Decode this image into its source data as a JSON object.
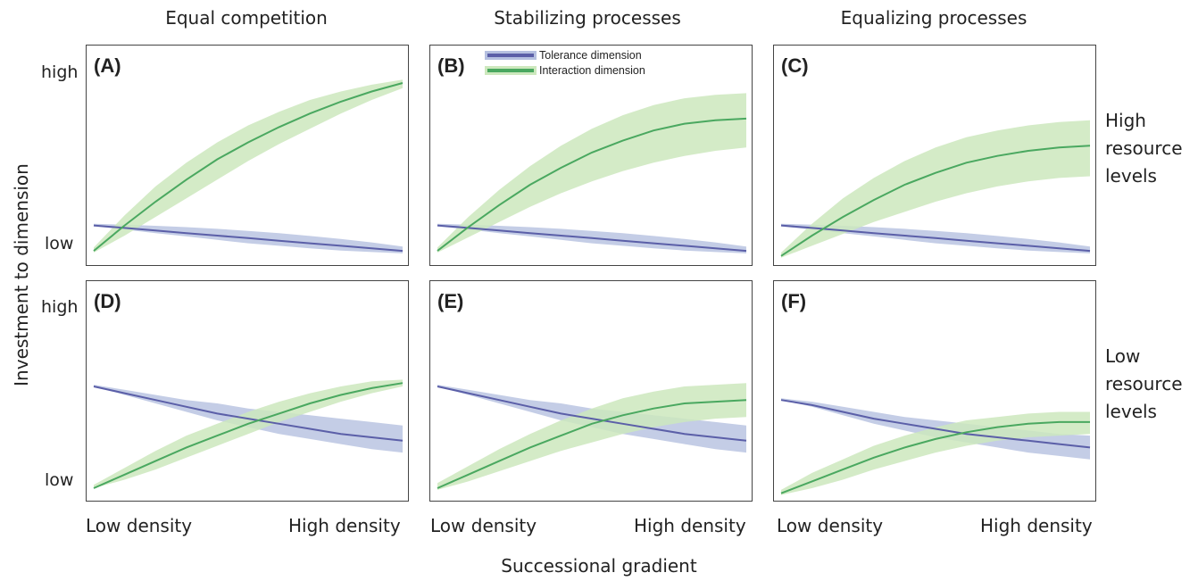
{
  "figure": {
    "column_titles": [
      "Equal competition",
      "Stabilizing processes",
      "Equalizing processes"
    ],
    "row_labels": [
      "High\nresource\nlevels",
      "Low\nresource\nlevels"
    ],
    "y_ticks": {
      "high": "high",
      "low": "low"
    },
    "x_ticks": {
      "low": "Low density",
      "high": "High density"
    },
    "xlabel": "Successional gradient",
    "ylabel": "Investment to dimension",
    "legend": {
      "tolerance": "Tolerance dimension",
      "interaction": "Interaction dimension"
    },
    "colors": {
      "tolerance_line": "#5b5fa8",
      "tolerance_band": "#b5c0e0",
      "interaction_line": "#4aa860",
      "interaction_band": "#cde8bd"
    }
  },
  "chart_data": [
    {
      "type": "line",
      "panel": "(A)",
      "title": "",
      "x": [
        0,
        0.1,
        0.2,
        0.3,
        0.4,
        0.5,
        0.6,
        0.7,
        0.8,
        0.9,
        1.0
      ],
      "ylim": [
        0,
        1
      ],
      "series": [
        {
          "name": "Tolerance dimension",
          "values": [
            0.16,
            0.145,
            0.13,
            0.115,
            0.1,
            0.085,
            0.07,
            0.055,
            0.04,
            0.025,
            0.01
          ],
          "lower": [
            0.155,
            0.135,
            0.115,
            0.095,
            0.075,
            0.055,
            0.04,
            0.025,
            0.012,
            0.003,
            -0.005
          ],
          "upper": [
            0.17,
            0.165,
            0.158,
            0.15,
            0.14,
            0.128,
            0.114,
            0.098,
            0.08,
            0.06,
            0.035
          ]
        },
        {
          "name": "Interaction dimension",
          "values": [
            0.01,
            0.16,
            0.3,
            0.43,
            0.55,
            0.65,
            0.74,
            0.82,
            0.89,
            0.95,
            1.0
          ],
          "lower": [
            0.0,
            0.1,
            0.21,
            0.32,
            0.43,
            0.54,
            0.64,
            0.73,
            0.82,
            0.9,
            0.97
          ],
          "upper": [
            0.03,
            0.22,
            0.39,
            0.53,
            0.65,
            0.75,
            0.83,
            0.9,
            0.95,
            0.99,
            1.02
          ]
        }
      ]
    },
    {
      "type": "line",
      "panel": "(B)",
      "title": "",
      "x": [
        0,
        0.1,
        0.2,
        0.3,
        0.4,
        0.5,
        0.6,
        0.7,
        0.8,
        0.9,
        1.0
      ],
      "ylim": [
        0,
        1
      ],
      "series": [
        {
          "name": "Tolerance dimension",
          "values": [
            0.16,
            0.145,
            0.13,
            0.115,
            0.1,
            0.085,
            0.07,
            0.055,
            0.04,
            0.025,
            0.01
          ],
          "lower": [
            0.155,
            0.135,
            0.115,
            0.095,
            0.075,
            0.055,
            0.04,
            0.025,
            0.012,
            0.003,
            -0.005
          ],
          "upper": [
            0.17,
            0.165,
            0.158,
            0.15,
            0.14,
            0.128,
            0.114,
            0.098,
            0.08,
            0.06,
            0.035
          ]
        },
        {
          "name": "Interaction dimension",
          "values": [
            0.01,
            0.15,
            0.28,
            0.4,
            0.5,
            0.59,
            0.66,
            0.72,
            0.76,
            0.78,
            0.79
          ],
          "lower": [
            0.0,
            0.09,
            0.18,
            0.27,
            0.35,
            0.42,
            0.48,
            0.53,
            0.57,
            0.6,
            0.62
          ],
          "upper": [
            0.03,
            0.21,
            0.37,
            0.51,
            0.63,
            0.73,
            0.81,
            0.87,
            0.91,
            0.93,
            0.94
          ]
        }
      ]
    },
    {
      "type": "line",
      "panel": "(C)",
      "title": "",
      "x": [
        0,
        0.1,
        0.2,
        0.3,
        0.4,
        0.5,
        0.6,
        0.7,
        0.8,
        0.9,
        1.0
      ],
      "ylim": [
        0,
        1
      ],
      "series": [
        {
          "name": "Tolerance dimension",
          "values": [
            0.16,
            0.145,
            0.13,
            0.115,
            0.1,
            0.085,
            0.07,
            0.055,
            0.04,
            0.025,
            0.01
          ],
          "lower": [
            0.155,
            0.135,
            0.115,
            0.095,
            0.075,
            0.055,
            0.04,
            0.025,
            0.012,
            0.003,
            -0.005
          ],
          "upper": [
            0.17,
            0.165,
            0.158,
            0.15,
            0.14,
            0.128,
            0.114,
            0.098,
            0.08,
            0.06,
            0.035
          ]
        },
        {
          "name": "Interaction dimension",
          "values": [
            -0.02,
            0.1,
            0.21,
            0.31,
            0.4,
            0.47,
            0.53,
            0.57,
            0.6,
            0.62,
            0.63
          ],
          "lower": [
            -0.03,
            0.04,
            0.11,
            0.18,
            0.24,
            0.3,
            0.35,
            0.39,
            0.42,
            0.44,
            0.45
          ],
          "upper": [
            0.0,
            0.17,
            0.32,
            0.44,
            0.54,
            0.62,
            0.68,
            0.72,
            0.75,
            0.77,
            0.78
          ]
        }
      ]
    },
    {
      "type": "line",
      "panel": "(D)",
      "title": "",
      "x": [
        0,
        0.1,
        0.2,
        0.3,
        0.4,
        0.5,
        0.6,
        0.7,
        0.8,
        0.9,
        1.0
      ],
      "ylim": [
        0,
        1
      ],
      "series": [
        {
          "name": "Tolerance dimension",
          "values": [
            0.6,
            0.56,
            0.52,
            0.48,
            0.44,
            0.41,
            0.38,
            0.35,
            0.32,
            0.3,
            0.28
          ],
          "lower": [
            0.6,
            0.55,
            0.5,
            0.45,
            0.4,
            0.36,
            0.32,
            0.29,
            0.26,
            0.23,
            0.21
          ],
          "upper": [
            0.61,
            0.58,
            0.55,
            0.52,
            0.5,
            0.47,
            0.45,
            0.43,
            0.41,
            0.39,
            0.37
          ]
        },
        {
          "name": "Interaction dimension",
          "values": [
            0.0,
            0.08,
            0.16,
            0.24,
            0.31,
            0.38,
            0.44,
            0.5,
            0.55,
            0.59,
            0.62
          ],
          "lower": [
            0.0,
            0.05,
            0.11,
            0.18,
            0.25,
            0.32,
            0.39,
            0.45,
            0.51,
            0.56,
            0.6
          ],
          "upper": [
            0.02,
            0.12,
            0.22,
            0.31,
            0.38,
            0.45,
            0.51,
            0.56,
            0.6,
            0.63,
            0.64
          ]
        }
      ]
    },
    {
      "type": "line",
      "panel": "(E)",
      "title": "",
      "x": [
        0,
        0.1,
        0.2,
        0.3,
        0.4,
        0.5,
        0.6,
        0.7,
        0.8,
        0.9,
        1.0
      ],
      "ylim": [
        0,
        1
      ],
      "series": [
        {
          "name": "Tolerance dimension",
          "values": [
            0.6,
            0.56,
            0.52,
            0.48,
            0.44,
            0.41,
            0.38,
            0.35,
            0.32,
            0.3,
            0.28
          ],
          "lower": [
            0.6,
            0.55,
            0.5,
            0.45,
            0.4,
            0.36,
            0.32,
            0.29,
            0.26,
            0.23,
            0.21
          ],
          "upper": [
            0.61,
            0.58,
            0.55,
            0.52,
            0.5,
            0.47,
            0.45,
            0.43,
            0.41,
            0.39,
            0.37
          ]
        },
        {
          "name": "Interaction dimension",
          "values": [
            0.0,
            0.08,
            0.16,
            0.24,
            0.31,
            0.38,
            0.43,
            0.47,
            0.5,
            0.51,
            0.52
          ],
          "lower": [
            -0.01,
            0.04,
            0.1,
            0.16,
            0.22,
            0.27,
            0.32,
            0.36,
            0.39,
            0.41,
            0.42
          ],
          "upper": [
            0.03,
            0.13,
            0.23,
            0.32,
            0.4,
            0.47,
            0.53,
            0.57,
            0.6,
            0.61,
            0.62
          ]
        }
      ]
    },
    {
      "type": "line",
      "panel": "(F)",
      "title": "",
      "x": [
        0,
        0.1,
        0.2,
        0.3,
        0.4,
        0.5,
        0.6,
        0.7,
        0.8,
        0.9,
        1.0
      ],
      "ylim": [
        0,
        1
      ],
      "series": [
        {
          "name": "Tolerance dimension",
          "values": [
            0.52,
            0.49,
            0.45,
            0.41,
            0.38,
            0.35,
            0.32,
            0.3,
            0.28,
            0.26,
            0.24
          ],
          "lower": [
            0.52,
            0.48,
            0.43,
            0.38,
            0.34,
            0.3,
            0.27,
            0.24,
            0.21,
            0.19,
            0.17
          ],
          "upper": [
            0.53,
            0.51,
            0.48,
            0.45,
            0.42,
            0.4,
            0.38,
            0.36,
            0.34,
            0.32,
            0.31
          ]
        },
        {
          "name": "Interaction dimension",
          "values": [
            -0.03,
            0.04,
            0.11,
            0.18,
            0.24,
            0.29,
            0.33,
            0.36,
            0.38,
            0.39,
            0.39
          ],
          "lower": [
            -0.04,
            0.0,
            0.05,
            0.11,
            0.16,
            0.21,
            0.25,
            0.28,
            0.3,
            0.31,
            0.32
          ],
          "upper": [
            -0.01,
            0.09,
            0.17,
            0.25,
            0.31,
            0.36,
            0.4,
            0.42,
            0.44,
            0.45,
            0.45
          ]
        }
      ]
    }
  ]
}
